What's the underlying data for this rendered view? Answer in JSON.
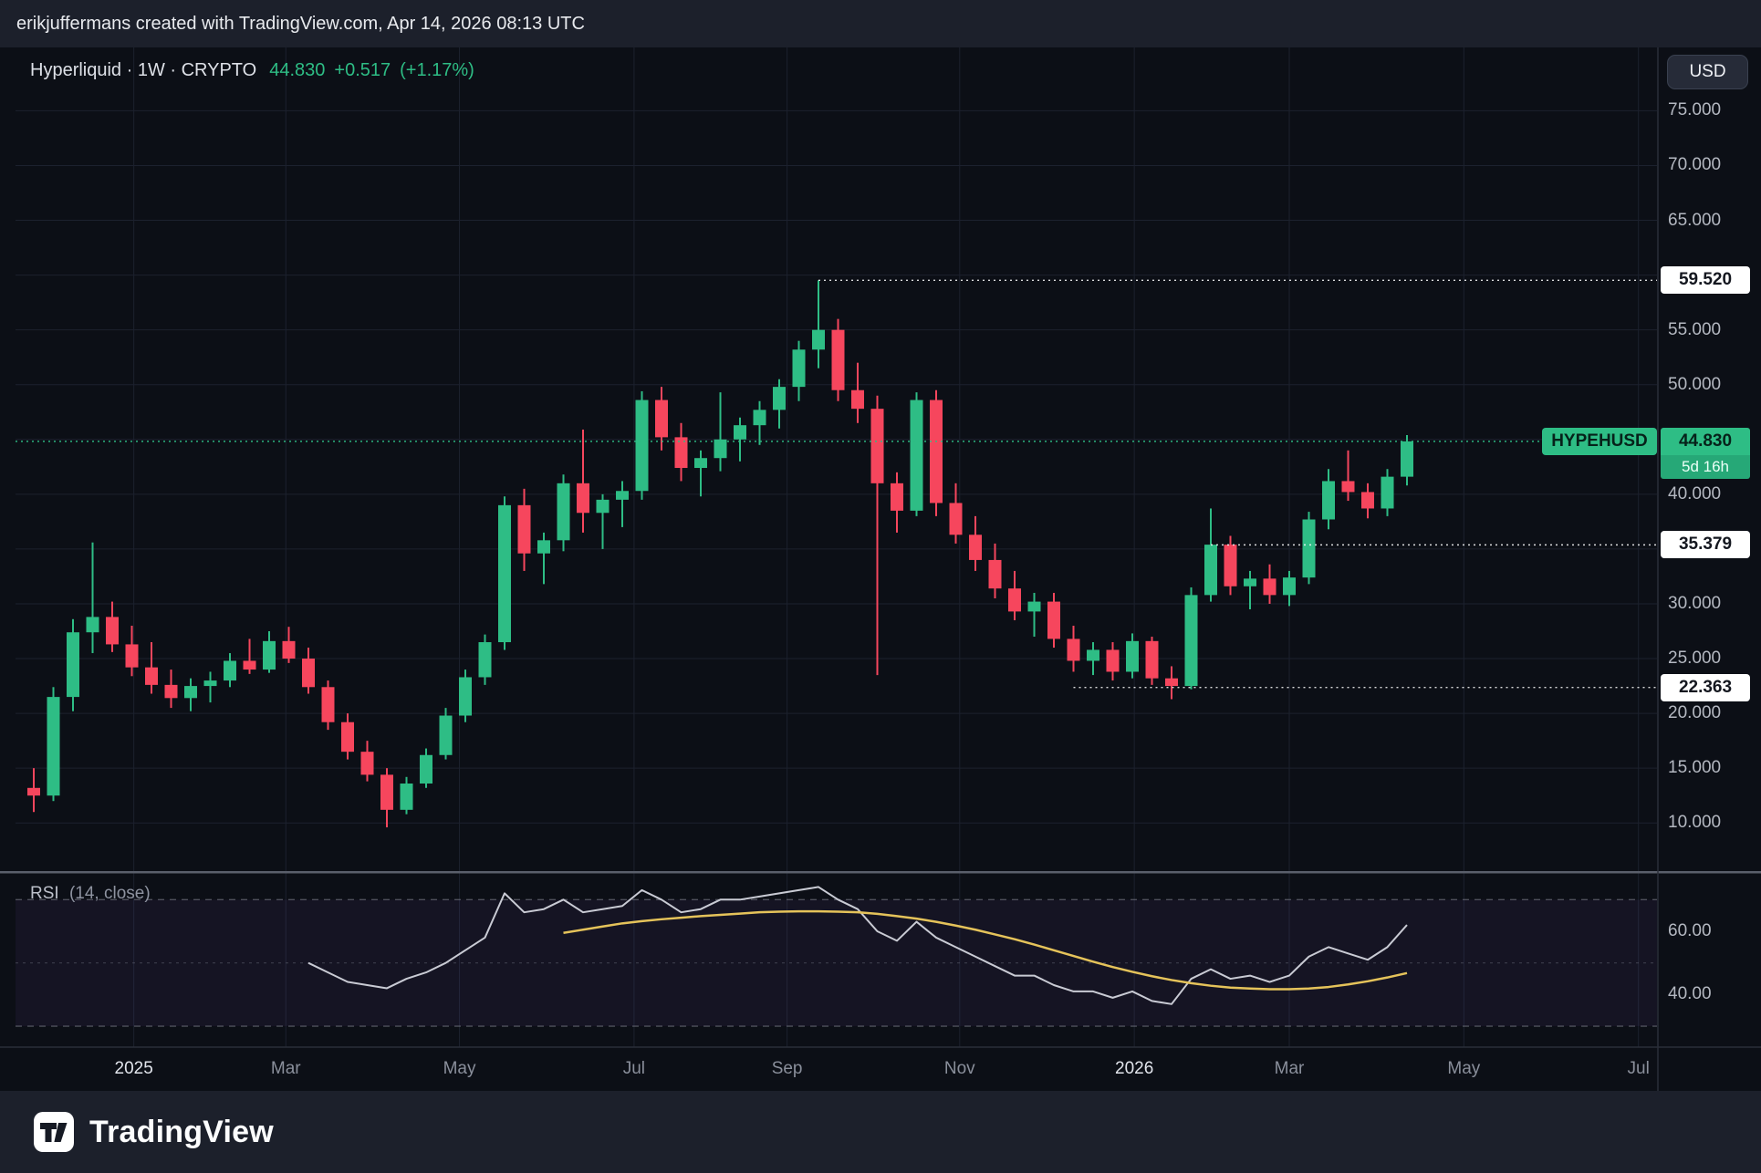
{
  "attribution": "erikjuffermans created with TradingView.com, Apr 14, 2026 08:13 UTC",
  "header": {
    "symbol_line": "Hyperliquid · 1W · CRYPTO",
    "price": "44.830",
    "change": "+0.517",
    "change_pct": "(+1.17%)"
  },
  "currency_button": "USD",
  "footer": {
    "brand_name": "TradingView"
  },
  "colors": {
    "up": "#2ebd85",
    "down": "#f6465d",
    "background": "#0c0f16",
    "panel": "#1c202b",
    "grid": "#1c212e",
    "axis_text": "#b4b8c1",
    "level_line": "#ffffff",
    "current_line": "#2ebd85",
    "rsi_line": "#c9cbd4",
    "rsi_ma": "#e5c35a",
    "rsi_band": "#7e57c2",
    "separator": "#5a5f6b",
    "axis_border": "#2a2e39"
  },
  "chart_data": {
    "type": "candlestick",
    "symbol": "HYPEHUSD",
    "interval": "1W",
    "ylim": [
      9,
      76
    ],
    "price_ticks": [
      {
        "label": "75.000",
        "value": 75
      },
      {
        "label": "70.000",
        "value": 70
      },
      {
        "label": "65.000",
        "value": 65
      },
      {
        "label": "55.000",
        "value": 55
      },
      {
        "label": "50.000",
        "value": 50
      },
      {
        "label": "40.000",
        "value": 40
      },
      {
        "label": "30.000",
        "value": 30
      },
      {
        "label": "25.000",
        "value": 25
      },
      {
        "label": "20.000",
        "value": 20
      },
      {
        "label": "15.000",
        "value": 15
      },
      {
        "label": "10.000",
        "value": 10
      }
    ],
    "x_labels": [
      {
        "text": "2025",
        "index": 5.1,
        "major": true
      },
      {
        "text": "Mar",
        "index": 12.85
      },
      {
        "text": "May",
        "index": 21.7
      },
      {
        "text": "Jul",
        "index": 30.6
      },
      {
        "text": "Sep",
        "index": 38.4
      },
      {
        "text": "Nov",
        "index": 47.2
      },
      {
        "text": "2026",
        "index": 56.1,
        "major": true
      },
      {
        "text": "Mar",
        "index": 64.0
      },
      {
        "text": "May",
        "index": 72.9
      },
      {
        "text": "Jul",
        "index": 81.8
      }
    ],
    "candles": [
      [
        13.2,
        15.0,
        11.0,
        12.5
      ],
      [
        12.5,
        22.4,
        12.0,
        21.5
      ],
      [
        21.5,
        28.6,
        20.2,
        27.4
      ],
      [
        27.4,
        35.6,
        25.5,
        28.8
      ],
      [
        28.8,
        30.2,
        25.6,
        26.3
      ],
      [
        26.3,
        28.0,
        23.4,
        24.2
      ],
      [
        24.2,
        26.5,
        21.8,
        22.6
      ],
      [
        22.6,
        24.0,
        20.5,
        21.4
      ],
      [
        21.4,
        23.2,
        20.2,
        22.5
      ],
      [
        22.5,
        23.8,
        21.0,
        23.0
      ],
      [
        23.0,
        25.5,
        22.4,
        24.8
      ],
      [
        24.8,
        26.8,
        23.6,
        24.0
      ],
      [
        24.0,
        27.5,
        23.7,
        26.6
      ],
      [
        26.6,
        27.9,
        24.6,
        25.0
      ],
      [
        25.0,
        26.0,
        21.8,
        22.4
      ],
      [
        22.4,
        23.0,
        18.5,
        19.2
      ],
      [
        19.2,
        20.0,
        15.8,
        16.5
      ],
      [
        16.5,
        17.5,
        13.8,
        14.4
      ],
      [
        14.4,
        15.0,
        9.6,
        11.2
      ],
      [
        11.2,
        14.2,
        10.8,
        13.6
      ],
      [
        13.6,
        16.8,
        13.2,
        16.2
      ],
      [
        16.2,
        20.5,
        15.8,
        19.8
      ],
      [
        19.8,
        24.0,
        19.2,
        23.3
      ],
      [
        23.3,
        27.2,
        22.6,
        26.5
      ],
      [
        26.5,
        39.8,
        25.8,
        39.0
      ],
      [
        39.0,
        40.5,
        33.0,
        34.6
      ],
      [
        34.6,
        36.5,
        31.8,
        35.8
      ],
      [
        35.8,
        41.8,
        34.8,
        41.0
      ],
      [
        41.0,
        45.9,
        36.5,
        38.3
      ],
      [
        38.3,
        40.0,
        35.0,
        39.5
      ],
      [
        39.5,
        41.2,
        37.0,
        40.3
      ],
      [
        40.3,
        49.4,
        39.5,
        48.6
      ],
      [
        48.6,
        49.8,
        44.0,
        45.2
      ],
      [
        45.2,
        46.5,
        41.2,
        42.4
      ],
      [
        42.4,
        44.0,
        39.8,
        43.3
      ],
      [
        43.3,
        49.3,
        42.1,
        45.0
      ],
      [
        45.0,
        47.0,
        43.0,
        46.3
      ],
      [
        46.3,
        48.5,
        44.5,
        47.7
      ],
      [
        47.7,
        50.5,
        46.0,
        49.8
      ],
      [
        49.8,
        54.0,
        48.5,
        53.2
      ],
      [
        53.2,
        59.52,
        51.5,
        55.0
      ],
      [
        55.0,
        56.0,
        48.5,
        49.5
      ],
      [
        49.5,
        52.0,
        46.5,
        47.8
      ],
      [
        47.8,
        49.0,
        23.5,
        41.0
      ],
      [
        41.0,
        42.0,
        36.5,
        38.5
      ],
      [
        38.5,
        49.3,
        38.0,
        48.6
      ],
      [
        48.6,
        49.5,
        38.0,
        39.2
      ],
      [
        39.2,
        41.0,
        35.5,
        36.3
      ],
      [
        36.3,
        38.0,
        33.0,
        34.0
      ],
      [
        34.0,
        35.5,
        30.5,
        31.4
      ],
      [
        31.4,
        33.0,
        28.5,
        29.3
      ],
      [
        29.3,
        31.0,
        27.0,
        30.2
      ],
      [
        30.2,
        31.0,
        26.0,
        26.8
      ],
      [
        26.8,
        28.0,
        23.8,
        24.8
      ],
      [
        24.8,
        26.5,
        23.5,
        25.8
      ],
      [
        25.8,
        26.5,
        23.0,
        23.8
      ],
      [
        23.8,
        27.3,
        23.2,
        26.6
      ],
      [
        26.6,
        27.0,
        22.6,
        23.2
      ],
      [
        23.2,
        24.3,
        21.3,
        22.5
      ],
      [
        22.5,
        31.5,
        22.2,
        30.8
      ],
      [
        30.8,
        38.7,
        30.2,
        35.4
      ],
      [
        35.4,
        36.2,
        30.8,
        31.6
      ],
      [
        31.6,
        33.0,
        29.5,
        32.3
      ],
      [
        32.3,
        33.6,
        30.0,
        30.8
      ],
      [
        30.8,
        33.0,
        29.8,
        32.4
      ],
      [
        32.4,
        38.4,
        31.8,
        37.7
      ],
      [
        37.7,
        42.3,
        36.8,
        41.2
      ],
      [
        41.2,
        44.0,
        39.4,
        40.2
      ],
      [
        40.2,
        41.0,
        37.8,
        38.7
      ],
      [
        38.7,
        42.3,
        38.0,
        41.6
      ],
      [
        41.6,
        45.4,
        40.8,
        44.83
      ]
    ],
    "levels": [
      {
        "label": "59.520",
        "value": 59.52,
        "anchor_index": 40
      },
      {
        "label": "35.379",
        "value": 35.379,
        "anchor_index": 60
      },
      {
        "label": "22.363",
        "value": 22.363,
        "anchor_index": 53
      }
    ],
    "current": {
      "label": "44.830",
      "value": 44.83,
      "countdown": "5d 16h"
    },
    "rsi": {
      "label": "RSI",
      "params": "(14, close)",
      "bands": [
        70,
        50,
        30
      ],
      "axis_ticks": [
        {
          "label": "60.00",
          "value": 60
        },
        {
          "label": "40.00",
          "value": 40
        }
      ],
      "start_index": 14,
      "values": [
        50,
        47,
        44,
        43,
        42,
        45,
        47,
        50,
        54,
        58,
        72,
        66,
        67,
        70,
        66,
        67,
        68,
        73,
        70,
        66,
        67,
        70,
        70,
        71,
        72,
        73,
        74,
        70,
        67,
        60,
        57,
        63,
        58,
        55,
        52,
        49,
        46,
        46,
        43,
        41,
        41,
        39,
        41,
        38,
        37,
        45,
        48,
        45,
        46,
        44,
        46,
        52,
        55,
        53,
        51,
        55,
        62
      ],
      "ma_start_index": 27,
      "ma": [
        59.5,
        60.5,
        61.5,
        62.5,
        63.2,
        63.8,
        64.3,
        64.8,
        65.2,
        65.6,
        66,
        66.2,
        66.3,
        66.3,
        66.2,
        66,
        65.5,
        64.8,
        64,
        63,
        61.8,
        60.5,
        59,
        57.5,
        55.8,
        54,
        52.2,
        50.4,
        48.7,
        47.2,
        45.8,
        44.6,
        43.6,
        42.8,
        42.2,
        41.9,
        41.7,
        41.7,
        41.9,
        42.4,
        43.2,
        44.2,
        45.4,
        46.8
      ]
    }
  }
}
